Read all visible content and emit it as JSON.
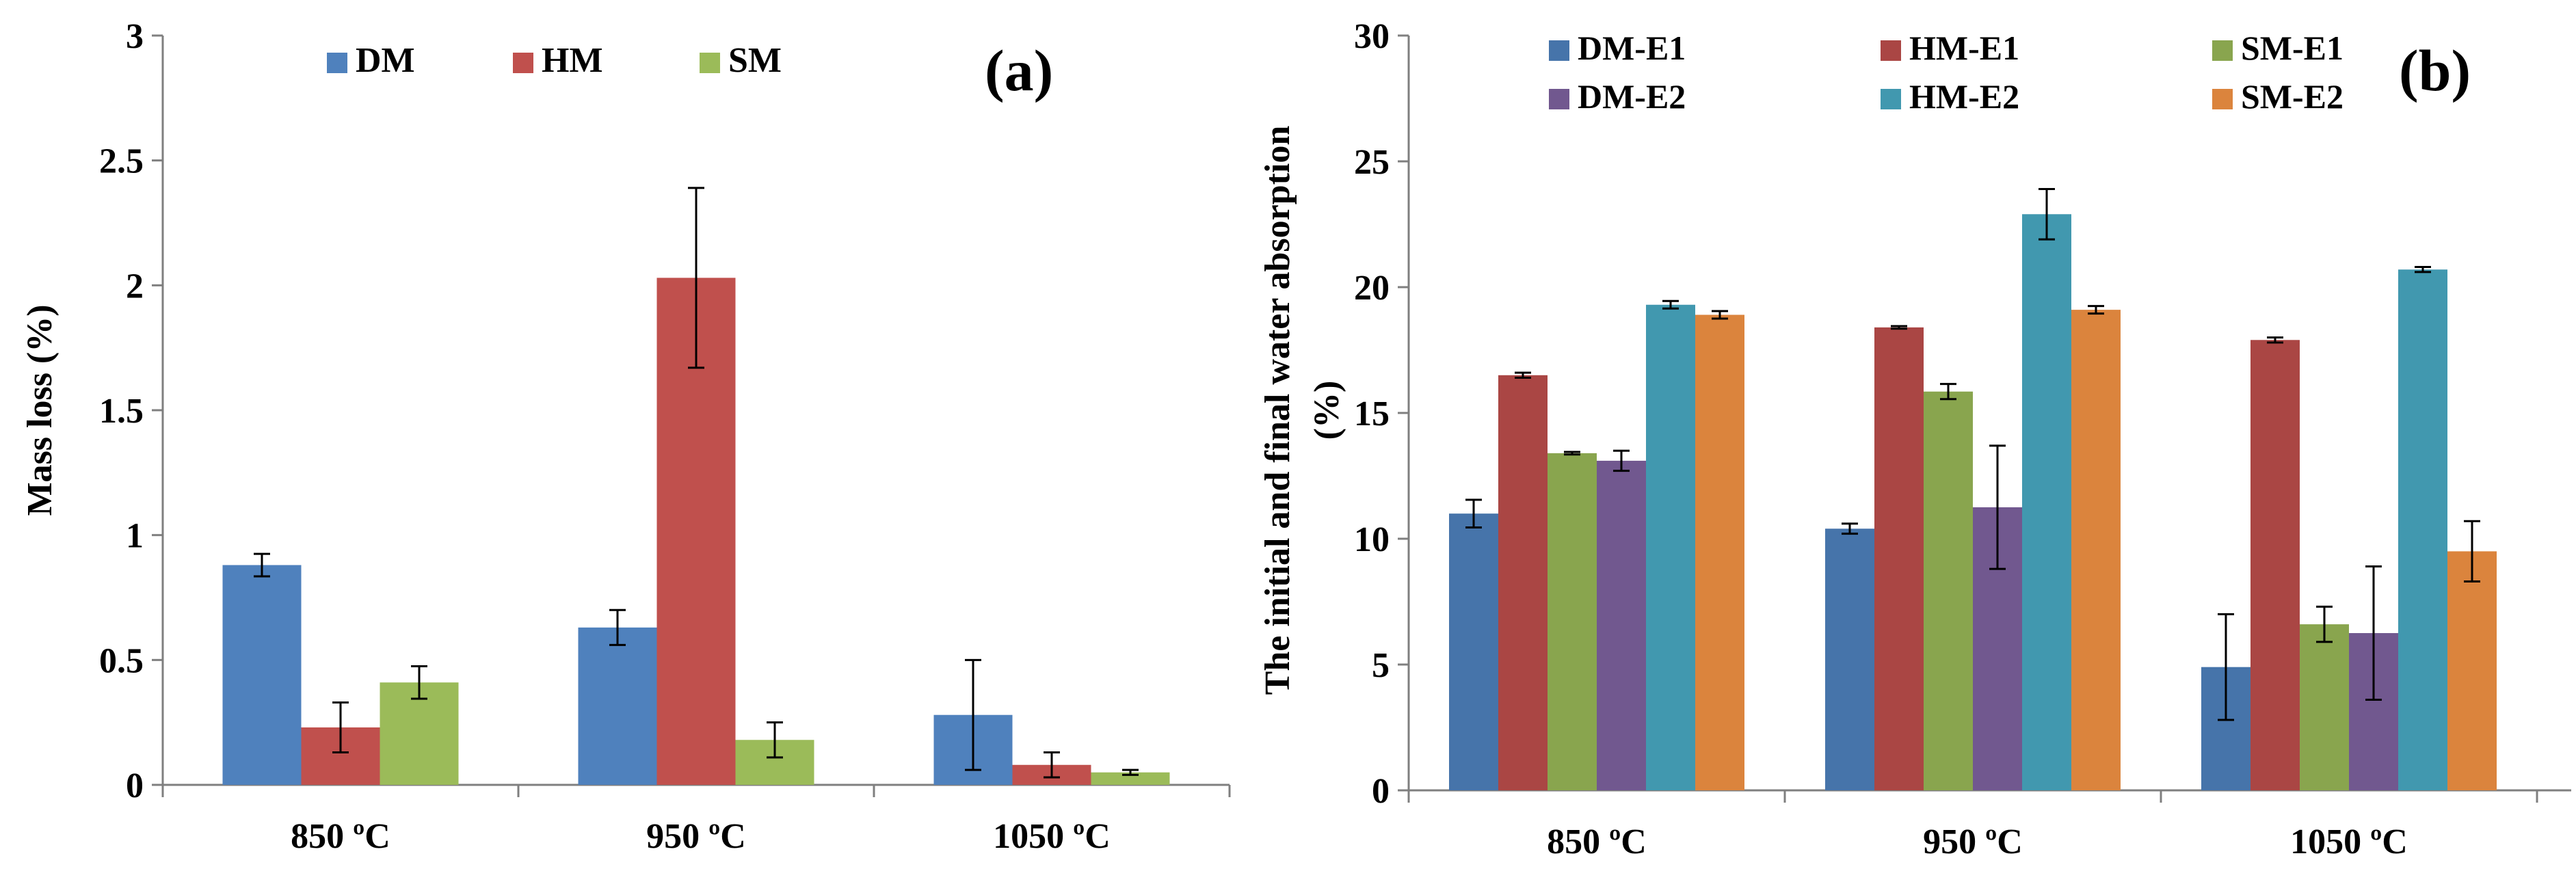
{
  "chart_data": [
    {
      "id": "a",
      "type": "bar",
      "panel_label": "(a)",
      "ylabel": "Mass loss (%)",
      "ylim": [
        0,
        3
      ],
      "yticks": [
        0,
        0.5,
        1,
        1.5,
        2,
        2.5,
        3
      ],
      "ytick_labels": [
        "0",
        "0.5",
        "1",
        "1.5",
        "2",
        "2.5",
        "3"
      ],
      "categories": [
        "850 ºC",
        "950 ºC",
        "1050 ºC"
      ],
      "legend_position": "top",
      "grid": false,
      "series": [
        {
          "name": "DM",
          "color": "#4f81bd",
          "values": [
            0.88,
            0.63,
            0.28
          ],
          "errors": [
            0.045,
            0.07,
            0.22
          ]
        },
        {
          "name": "HM",
          "color": "#c0504d",
          "values": [
            0.23,
            2.03,
            0.08
          ],
          "errors": [
            0.1,
            0.36,
            0.05
          ]
        },
        {
          "name": "SM",
          "color": "#9bbb59",
          "values": [
            0.41,
            0.18,
            0.05
          ],
          "errors": [
            0.065,
            0.07,
            0.01
          ]
        }
      ]
    },
    {
      "id": "b",
      "type": "bar",
      "panel_label": "(b)",
      "ylabel_line1": "The initial and final water absorption",
      "ylabel_line2": "(%)",
      "ylim": [
        0,
        30
      ],
      "yticks": [
        0,
        5,
        10,
        15,
        20,
        25,
        30
      ],
      "ytick_labels": [
        "0",
        "5",
        "10",
        "15",
        "20",
        "25",
        "30"
      ],
      "categories": [
        "850 ºC",
        "950 ºC",
        "1050 ºC"
      ],
      "legend_position": "top",
      "grid": false,
      "series": [
        {
          "name": "DM-E1",
          "color": "#4674aa",
          "values": [
            11.0,
            10.4,
            4.9
          ],
          "errors": [
            0.55,
            0.2,
            2.1
          ]
        },
        {
          "name": "HM-E1",
          "color": "#aa4644",
          "values": [
            16.5,
            18.4,
            17.9
          ],
          "errors": [
            0.1,
            0.05,
            0.1
          ]
        },
        {
          "name": "SM-E1",
          "color": "#89a54e",
          "values": [
            13.4,
            15.85,
            6.6
          ],
          "errors": [
            0.05,
            0.3,
            0.7
          ]
        },
        {
          "name": "DM-E2",
          "color": "#71588f",
          "values": [
            13.1,
            11.25,
            6.25
          ],
          "errors": [
            0.4,
            2.45,
            2.65
          ]
        },
        {
          "name": "HM-E2",
          "color": "#4198af",
          "values": [
            19.3,
            22.9,
            20.7
          ],
          "errors": [
            0.15,
            1.0,
            0.1
          ]
        },
        {
          "name": "SM-E2",
          "color": "#db843d",
          "values": [
            18.9,
            19.1,
            9.5
          ],
          "errors": [
            0.15,
            0.15,
            1.2
          ]
        }
      ]
    }
  ]
}
